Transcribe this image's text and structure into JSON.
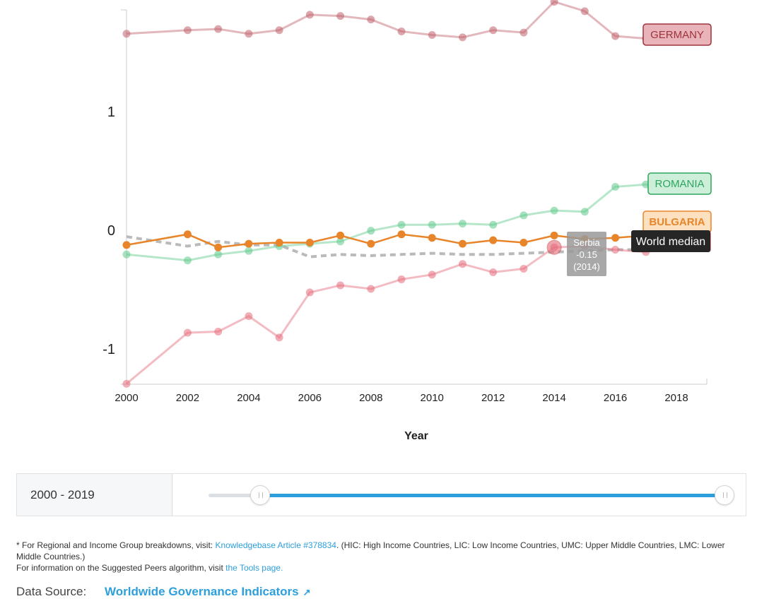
{
  "chart_data": {
    "type": "line",
    "xlabel": "Year",
    "x_ticks": [
      2000,
      2002,
      2004,
      2006,
      2008,
      2010,
      2012,
      2014,
      2016,
      2018
    ],
    "y_ticks": [
      1,
      0,
      -1
    ],
    "y_tick_labels": [
      "1",
      "0",
      "-1"
    ],
    "xlim": [
      2000,
      2019
    ],
    "ylim": [
      -1.3,
      1.92
    ],
    "x": [
      2000,
      2002,
      2003,
      2004,
      2005,
      2006,
      2007,
      2008,
      2009,
      2010,
      2011,
      2012,
      2013,
      2014,
      2015,
      2016,
      2017,
      2018
    ],
    "series": [
      {
        "name": "GERMANY",
        "color": "#c0616c",
        "values": [
          1.65,
          1.68,
          1.69,
          1.65,
          1.68,
          1.81,
          1.8,
          1.77,
          1.67,
          1.64,
          1.62,
          1.68,
          1.66,
          1.92,
          1.84,
          1.63,
          1.61,
          1.62
        ]
      },
      {
        "name": "ROMANIA",
        "color": "#5fc98a",
        "values": [
          -0.21,
          -0.26,
          -0.21,
          -0.18,
          -0.14,
          -0.12,
          -0.1,
          -0.01,
          0.04,
          0.04,
          0.05,
          0.04,
          0.12,
          0.16,
          0.15,
          0.36,
          0.38,
          0.33
        ]
      },
      {
        "name": "BULGARIA",
        "color": "#e8852a",
        "values": [
          -0.13,
          -0.04,
          -0.15,
          -0.12,
          -0.11,
          -0.11,
          -0.05,
          -0.12,
          -0.04,
          -0.07,
          -0.12,
          -0.09,
          -0.11,
          -0.05,
          -0.08,
          -0.07,
          -0.05,
          -0.09
        ]
      },
      {
        "name": "Serbia",
        "color": "#e56b7a",
        "values": [
          -1.3,
          -0.87,
          -0.86,
          -0.73,
          -0.91,
          -0.53,
          -0.47,
          -0.5,
          -0.42,
          -0.38,
          -0.29,
          -0.36,
          -0.33,
          -0.15,
          -0.14,
          -0.17,
          -0.19,
          -0.13
        ]
      },
      {
        "name": "World median",
        "color": "#b3b3b3",
        "dashed": true,
        "values": [
          -0.06,
          -0.14,
          -0.1,
          -0.13,
          -0.13,
          -0.23,
          -0.21,
          -0.22,
          -0.21,
          -0.2,
          -0.21,
          -0.21,
          -0.2,
          -0.19,
          -0.18,
          -0.17,
          -0.17,
          -0.16
        ]
      }
    ],
    "series_labels": [
      {
        "series": "GERMANY",
        "text": "GERMANY",
        "bg": "#e8b4b9",
        "border": "#a0323f",
        "fg": "#a0323f"
      },
      {
        "series": "ROMANIA",
        "text": "ROMANIA",
        "bg": "#cdefd9",
        "border": "#2da55e",
        "fg": "#2da55e"
      },
      {
        "series": "BULGARIA",
        "text": "BULGARIA",
        "bg": "#fde0bf",
        "border": "#e8852a",
        "fg": "#e8852a"
      }
    ],
    "tooltip": {
      "series": "Serbia",
      "year": 2014,
      "line1": "Serbia",
      "line2": "-0.15",
      "line3": "(2014)"
    },
    "median_label": "World median"
  },
  "range": {
    "label": "2000 - 2019",
    "start_fraction": 0.1,
    "end_fraction": 1.0
  },
  "footnote": {
    "prefix": "* For Regional and Income Group breakdowns, visit: ",
    "kb_link": "Knowledgebase Article #378834",
    "kb_suffix": ". (HIC: High Income Countries, LIC: Low Income Countries, UMC: Upper Middle Countries, LMC: Lower Middle Countries.)",
    "peers_prefix": "For information on the Suggested Peers algorithm, visit ",
    "tools_link": "the Tools page."
  },
  "data_source": {
    "label": "Data Source:",
    "link": "Worldwide Governance Indicators"
  }
}
